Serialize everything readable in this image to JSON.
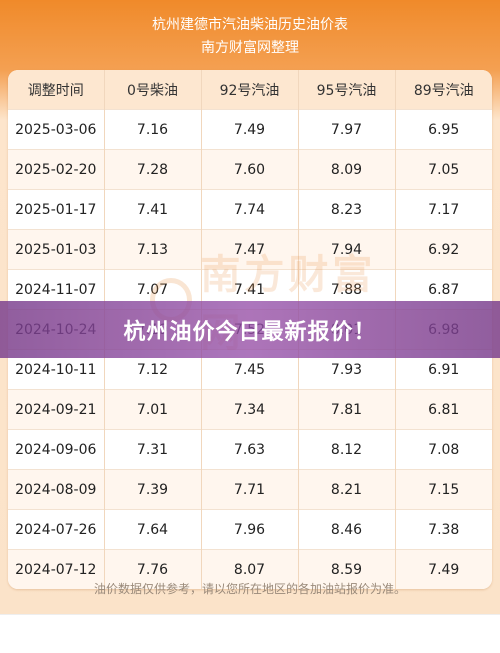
{
  "header": {
    "title": "杭州建德市汽油柴油历史油价表",
    "subtitle": "南方财富网整理"
  },
  "table": {
    "columns": [
      "调整时间",
      "0号柴油",
      "92号汽油",
      "95号汽油",
      "89号汽油"
    ],
    "rows": [
      [
        "2025-03-06",
        "7.16",
        "7.49",
        "7.97",
        "6.95"
      ],
      [
        "2025-02-20",
        "7.28",
        "7.60",
        "8.09",
        "7.05"
      ],
      [
        "2025-01-17",
        "7.41",
        "7.74",
        "8.23",
        "7.17"
      ],
      [
        "2025-01-03",
        "7.13",
        "7.47",
        "7.94",
        "6.92"
      ],
      [
        "2024-11-07",
        "7.07",
        "7.41",
        "7.88",
        "6.87"
      ],
      [
        "2024-10-24",
        "7.19",
        "7.52",
        "8.01",
        "6.98"
      ],
      [
        "2024-10-11",
        "7.12",
        "7.45",
        "7.93",
        "6.91"
      ],
      [
        "2024-09-21",
        "7.01",
        "7.34",
        "7.81",
        "6.81"
      ],
      [
        "2024-09-06",
        "7.31",
        "7.63",
        "8.12",
        "7.08"
      ],
      [
        "2024-08-09",
        "7.39",
        "7.71",
        "8.21",
        "7.15"
      ],
      [
        "2024-07-26",
        "7.64",
        "7.96",
        "8.46",
        "7.38"
      ],
      [
        "2024-07-12",
        "7.76",
        "8.07",
        "8.59",
        "7.49"
      ]
    ]
  },
  "watermark": "南方财富网",
  "banner": {
    "text": "杭州油价今日最新报价！"
  },
  "footer": {
    "note": "油价数据仅供参考，请以您所在地区的各加油站报价为准。"
  },
  "colors": {
    "header_orange": "#f08a2a",
    "banner_purple": "#8a4a9e"
  }
}
